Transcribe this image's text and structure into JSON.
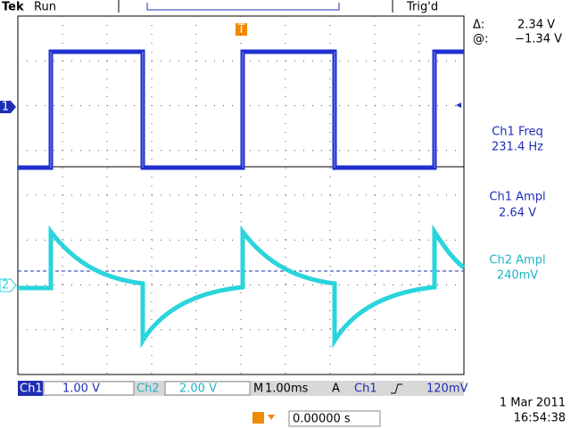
{
  "header": {
    "brand": "Tek",
    "status": "Run",
    "trigger_status": "Trig'd"
  },
  "cursor": {
    "delta_label": "Δ:",
    "delta": "2.34 V",
    "at_label": "@:",
    "at": "−1.34 V"
  },
  "measurements": [
    {
      "label": "Ch1 Freq",
      "value": "231.4 Hz"
    },
    {
      "label": "Ch1 Ampl",
      "value": "2.64 V"
    },
    {
      "label": "Ch2 Ampl",
      "value": "240mV"
    }
  ],
  "markers": {
    "ch1": "1",
    "ch2": "2",
    "trigger": "T"
  },
  "bottom_bar": {
    "ch1_label": "Ch1",
    "ch1_scale": "1.00 V",
    "ch2_label": "Ch2",
    "ch2_scale": "2.00 V",
    "time_label": "M",
    "time_scale": "1.00ms",
    "trigger_mode": "A",
    "trigger_source": "Ch1",
    "trigger_level": "120mV"
  },
  "footer": {
    "date": "1 Mar  2011",
    "time": "16:54:38",
    "trigger_position": "0.00000 s"
  }
}
